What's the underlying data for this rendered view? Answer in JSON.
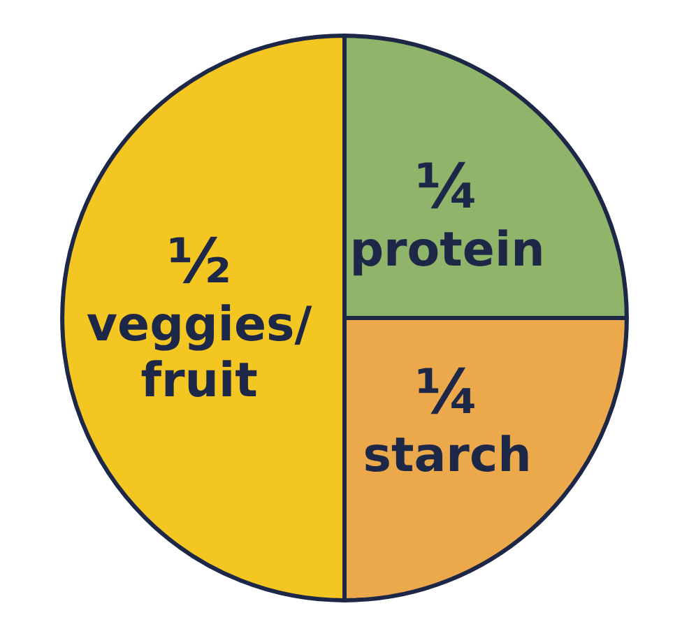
{
  "chart_data": {
    "type": "pie",
    "categories": [
      "protein",
      "starch",
      "veggies/fruit"
    ],
    "values": [
      25,
      25,
      50
    ],
    "value_labels": [
      "¼",
      "¼",
      "½"
    ],
    "colors": [
      "#8fb46a",
      "#eca94c",
      "#f4c622"
    ],
    "legend": false
  }
}
